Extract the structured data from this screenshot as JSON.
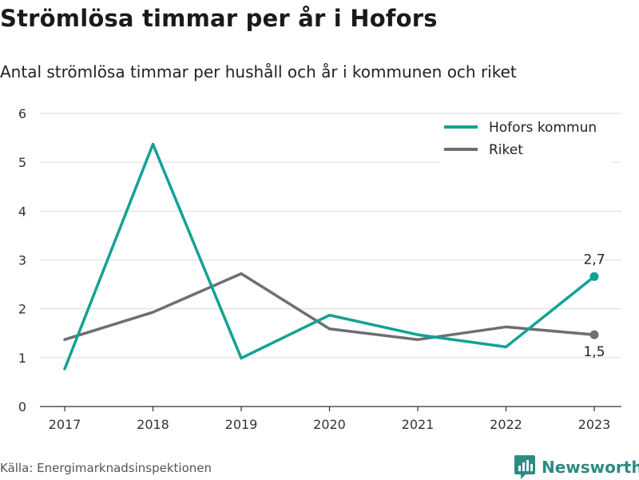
{
  "title": "Strömlösa timmar per år i Hofors",
  "subtitle": "Antal strömlösa timmar per hushåll och år i kommunen och riket",
  "source": "Källa: Energimarknadsinspektionen",
  "brand": {
    "name": "Newsworthy",
    "icon": "newsworthy-logo-icon",
    "color": "#2e8b83"
  },
  "chart_data": {
    "type": "line",
    "x": [
      "2017",
      "2018",
      "2019",
      "2020",
      "2021",
      "2022",
      "2023"
    ],
    "ylim": [
      0,
      6
    ],
    "yticks": [
      "0",
      "1",
      "2",
      "3",
      "4",
      "5",
      "6"
    ],
    "grid": true,
    "legend_position": "top-right",
    "series": [
      {
        "name": "Hofors kommun",
        "color": "#12a294",
        "values": [
          0.77,
          5.37,
          0.99,
          1.87,
          1.47,
          1.22,
          2.66
        ],
        "end_label": "2,7"
      },
      {
        "name": "Riket",
        "color": "#6e6e73",
        "values": [
          1.37,
          1.93,
          2.72,
          1.59,
          1.37,
          1.63,
          1.47
        ],
        "end_label": "1,5"
      }
    ]
  }
}
